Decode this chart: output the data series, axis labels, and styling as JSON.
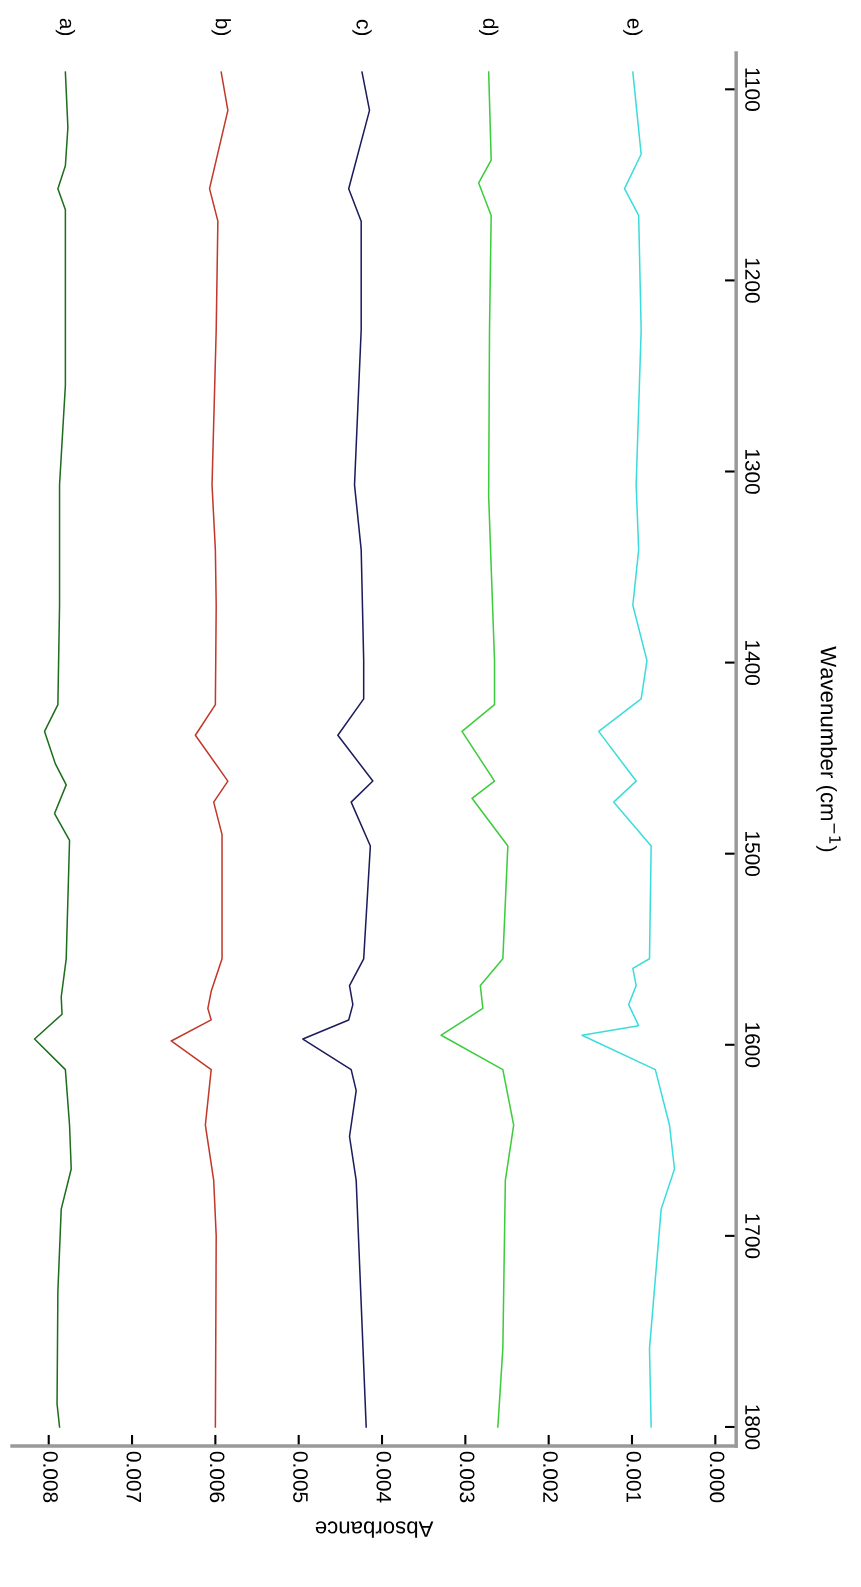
{
  "chart_data": {
    "type": "line",
    "xlabel": "Absorbance",
    "ylabel": "Wavenumber (cm$^{−1}$)",
    "xlim": [
      0.00844,
      -0.00025
    ],
    "ylim": [
      1810,
      1081
    ],
    "xticks": [
      {
        "value": 0.008,
        "label": "0.008"
      },
      {
        "value": 0.007,
        "label": "0.007"
      },
      {
        "value": 0.006,
        "label": "0.006"
      },
      {
        "value": 0.005,
        "label": "0.005"
      },
      {
        "value": 0.004,
        "label": "0.004"
      },
      {
        "value": 0.003,
        "label": "0.003"
      },
      {
        "value": 0.002,
        "label": "0.002"
      },
      {
        "value": 0.001,
        "label": "0.001"
      },
      {
        "value": 0.0,
        "label": "0.000"
      }
    ],
    "yticks": [
      1100,
      1200,
      1300,
      1400,
      1500,
      1600,
      1700,
      1800
    ],
    "grid": false,
    "legend": false,
    "marker": "none",
    "line_style": "solid",
    "series": [
      {
        "name": "a)",
        "color": "#1e6e1e",
        "values": [
          1091,
          1120,
          1140,
          1152,
          1163,
          1255,
          1307,
          1370,
          1422,
          1436,
          1453,
          1464,
          1479,
          1493,
          1555,
          1575,
          1584,
          1597,
          1613,
          1642,
          1665,
          1686,
          1729,
          1788,
          1800
        ],
        "x": [
          0.0078,
          0.00777,
          0.0078,
          0.00789,
          0.0078,
          0.0078,
          0.00787,
          0.00787,
          0.00789,
          0.00805,
          0.00792,
          0.00779,
          0.00793,
          0.00775,
          0.00779,
          0.00785,
          0.00784,
          0.00817,
          0.0078,
          0.00775,
          0.00773,
          0.00785,
          0.00789,
          0.0079,
          0.00787
        ]
      },
      {
        "name": "b)",
        "color": "#c0392b",
        "values": [
          1091,
          1111,
          1152,
          1169,
          1226,
          1307,
          1341,
          1370,
          1422,
          1438,
          1462,
          1473,
          1490,
          1555,
          1572,
          1581,
          1587,
          1598,
          1613,
          1642,
          1671,
          1700,
          1800
        ],
        "x": [
          0.00593,
          0.00585,
          0.00607,
          0.00597,
          0.00599,
          0.00604,
          0.006,
          0.00599,
          0.006,
          0.00624,
          0.00585,
          0.00602,
          0.00592,
          0.00592,
          0.00605,
          0.00609,
          0.00605,
          0.00653,
          0.00605,
          0.00612,
          0.00602,
          0.00599,
          0.006
        ]
      },
      {
        "name": "c)",
        "color": "#1c1c5c",
        "values": [
          1091,
          1111,
          1152,
          1169,
          1226,
          1307,
          1341,
          1399,
          1419,
          1438,
          1462,
          1473,
          1496,
          1555,
          1569,
          1579,
          1587,
          1597,
          1613,
          1624,
          1648,
          1671,
          1800
        ],
        "x": [
          0.00424,
          0.00415,
          0.0044,
          0.00425,
          0.00425,
          0.00433,
          0.00425,
          0.00422,
          0.00422,
          0.00453,
          0.00411,
          0.00437,
          0.00414,
          0.00422,
          0.00439,
          0.00435,
          0.0044,
          0.00495,
          0.00437,
          0.00431,
          0.00439,
          0.00431,
          0.00419
        ]
      },
      {
        "name": "d)",
        "color": "#3ccc3c",
        "values": [
          1091,
          1137,
          1149,
          1166,
          1226,
          1313,
          1399,
          1422,
          1436,
          1462,
          1471,
          1496,
          1555,
          1569,
          1581,
          1595,
          1613,
          1642,
          1671,
          1759,
          1800
        ],
        "x": [
          0.00272,
          0.00269,
          0.00284,
          0.00269,
          0.00271,
          0.00272,
          0.00265,
          0.00265,
          0.00304,
          0.00265,
          0.00292,
          0.00249,
          0.00255,
          0.00282,
          0.00279,
          0.00329,
          0.00255,
          0.00242,
          0.00252,
          0.00255,
          0.00261
        ]
      },
      {
        "name": "e)",
        "color": "#3cdcdc",
        "values": [
          1091,
          1134,
          1152,
          1166,
          1226,
          1307,
          1341,
          1370,
          1399,
          1419,
          1436,
          1462,
          1473,
          1496,
          1555,
          1560,
          1569,
          1579,
          1590,
          1595,
          1613,
          1642,
          1665,
          1686,
          1759,
          1800
        ],
        "x": [
          0.00099,
          0.00089,
          0.00109,
          0.00092,
          0.00089,
          0.00095,
          0.00092,
          0.00099,
          0.00082,
          0.00089,
          0.0014,
          0.00095,
          0.00122,
          0.00077,
          0.00079,
          0.00099,
          0.00095,
          0.00104,
          0.00092,
          0.0016,
          0.00072,
          0.00055,
          0.00049,
          0.00065,
          0.00079,
          0.00077
        ]
      }
    ]
  }
}
